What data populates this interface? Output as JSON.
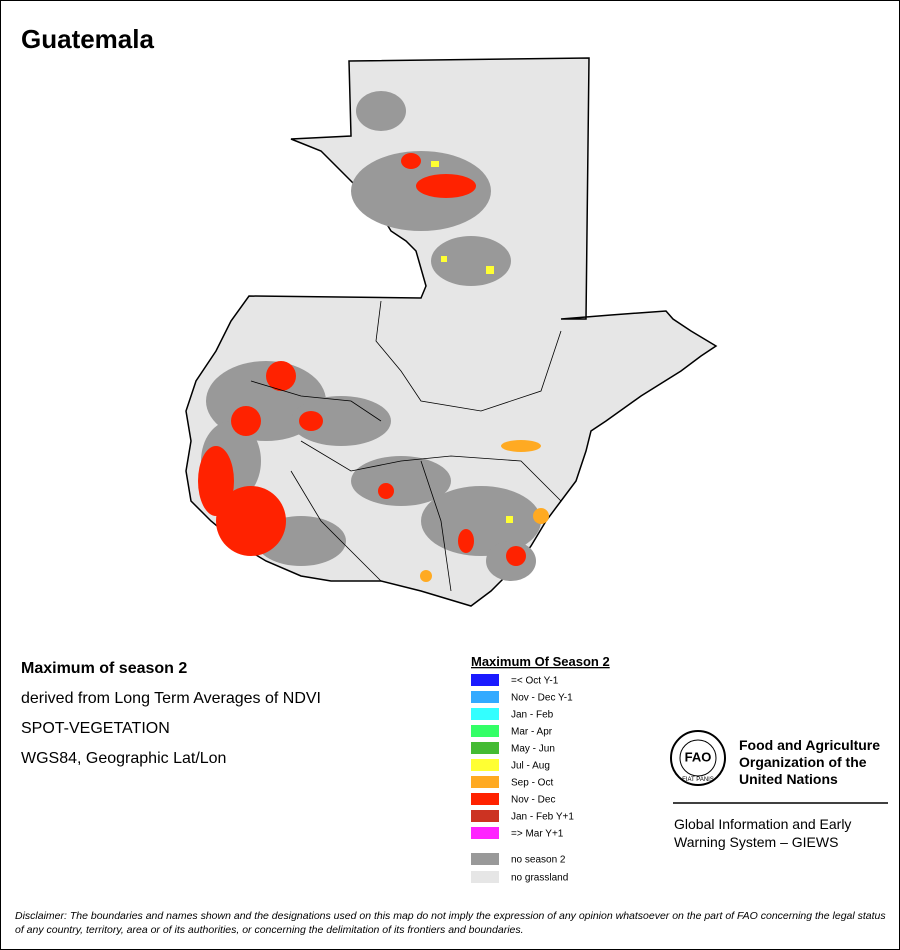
{
  "title": "Guatemala",
  "info": [
    "Maximum of season 2",
    "derived from Long Term Averages of NDVI",
    "SPOT-VEGETATION",
    "WGS84, Geographic Lat/Lon"
  ],
  "legend": {
    "title": "Maximum Of Season 2",
    "items": [
      {
        "label": "=< Oct Y-1",
        "color": "#1a1aff"
      },
      {
        "label": "Nov - Dec Y-1",
        "color": "#33aaff"
      },
      {
        "label": "Jan - Feb",
        "color": "#33ffff"
      },
      {
        "label": "Mar - Apr",
        "color": "#33ff66"
      },
      {
        "label": "May - Jun",
        "color": "#44bb33"
      },
      {
        "label": "Jul - Aug",
        "color": "#ffff33"
      },
      {
        "label": "Sep - Oct",
        "color": "#ffaa22"
      },
      {
        "label": "Nov - Dec",
        "color": "#ff2200"
      },
      {
        "label": "Jan - Feb Y+1",
        "color": "#cc3322"
      },
      {
        "label": "=> Mar Y+1",
        "color": "#ff22ff"
      }
    ],
    "extra": [
      {
        "label": "no season 2",
        "color": "#999999"
      },
      {
        "label": "no grassland",
        "color": "#e6e6e6"
      }
    ]
  },
  "logo": {
    "emblem": "FAO",
    "motto": "FIAT PANIS",
    "org": [
      "Food and Agriculture",
      "Organization of the",
      "United Nations"
    ],
    "system": [
      "Global Information and Early",
      "Warning System – GIEWS"
    ]
  },
  "disclaimer": "Disclaimer: The boundaries and names shown and the designations used on this map do not imply the expression of any opinion whatsoever on the part of FAO concerning the legal status of any country, territory, area or of its authorities, or concerning the delimitation of its frontiers and boundaries."
}
